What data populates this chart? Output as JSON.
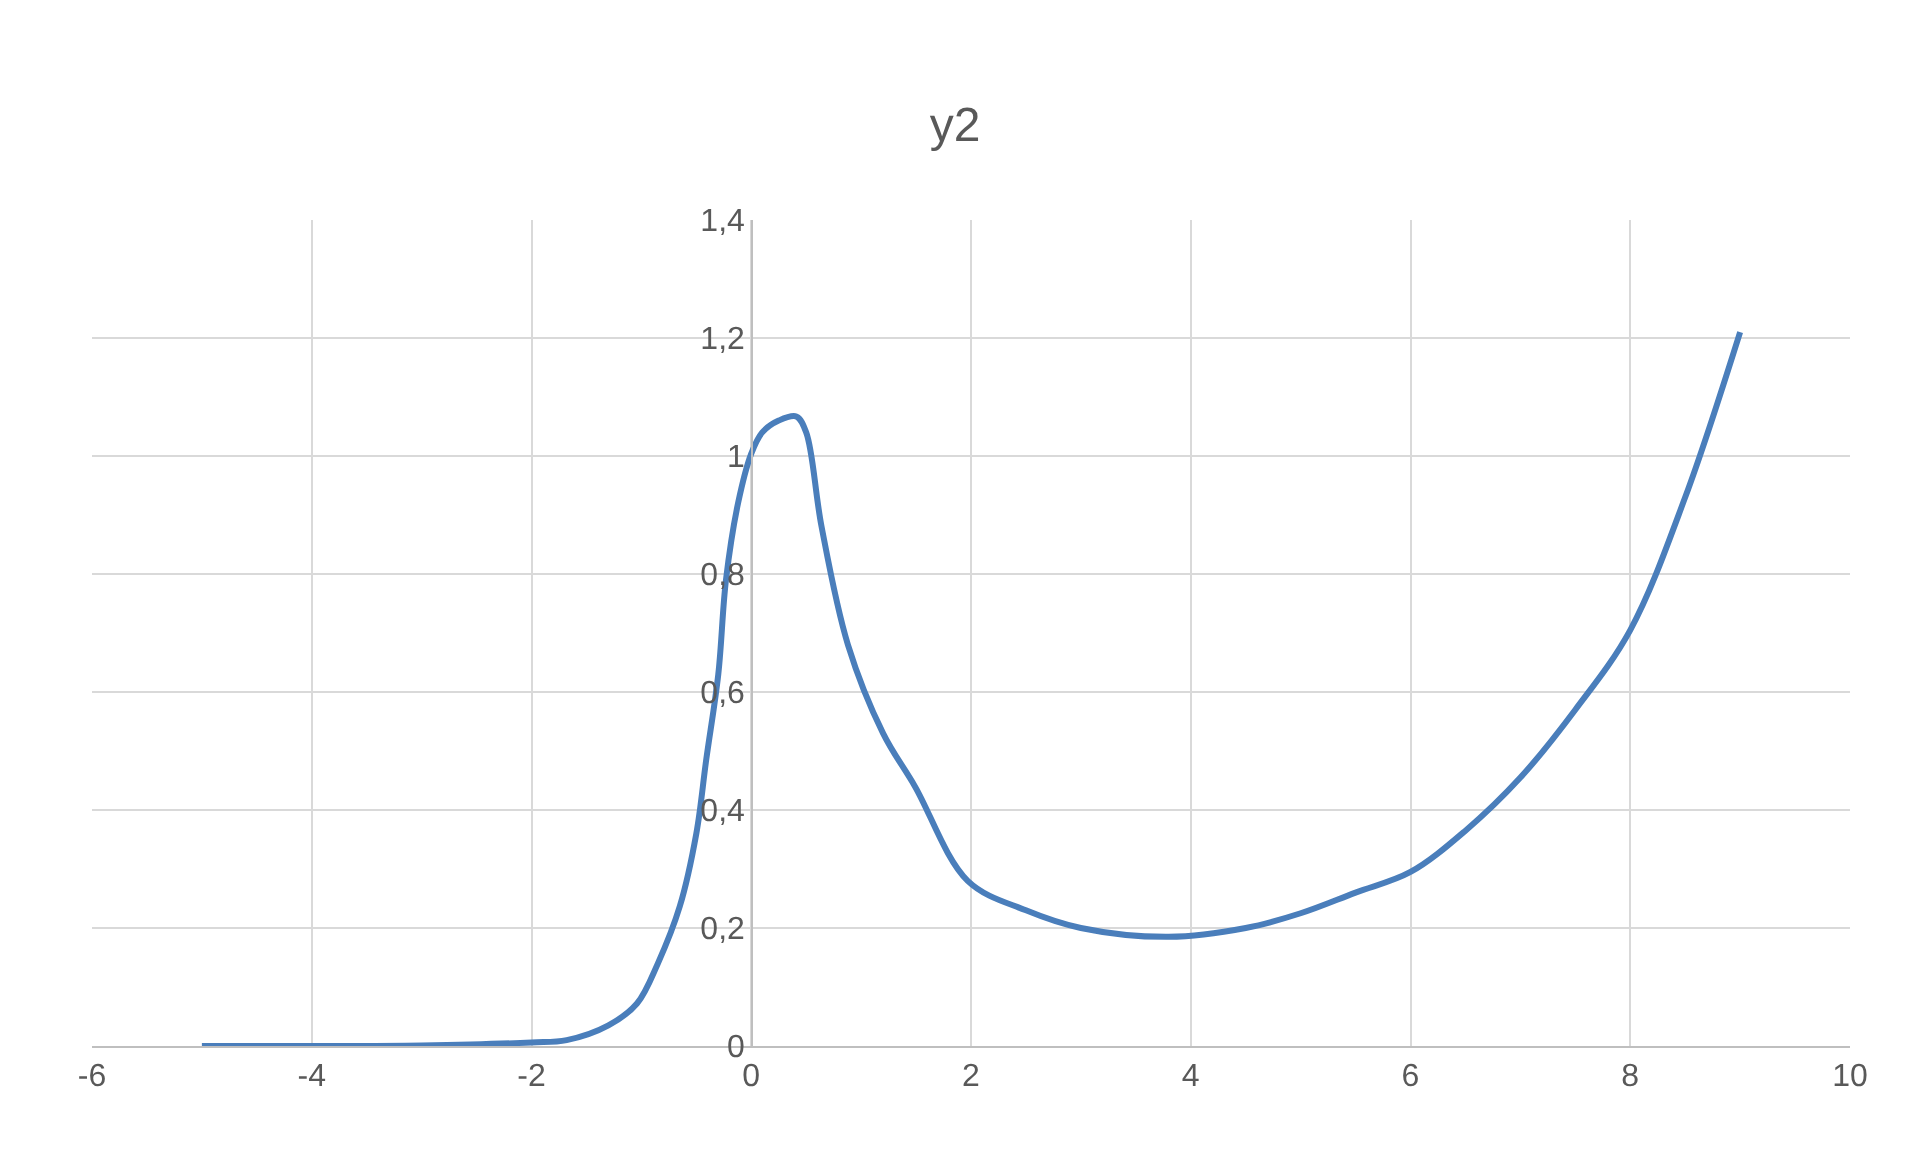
{
  "chart_data": {
    "type": "line",
    "title": "y2",
    "x": [
      -5,
      -4,
      -3,
      -2,
      -1.68,
      -1.3,
      -1.04,
      -0.85,
      -0.65,
      -0.5,
      -0.41,
      -0.3,
      -0.23,
      -0.12,
      0,
      0.1,
      0.25,
      0.41,
      0.5,
      0.64,
      0.88,
      1.2,
      1.49,
      1.97,
      2.5,
      3,
      3.8,
      4.5,
      5,
      5.5,
      6,
      6.5,
      7,
      7.5,
      8,
      8.5,
      9
    ],
    "series": [
      {
        "color": "#4a7ebb",
        "values": [
          0,
          0,
          0.001,
          0.006,
          0.01,
          0.035,
          0.072,
          0.14,
          0.237,
          0.36,
          0.485,
          0.63,
          0.79,
          0.92,
          1.004,
          1.04,
          1.06,
          1.067,
          1.04,
          0.88,
          0.68,
          0.53,
          0.44,
          0.28,
          0.23,
          0.2,
          0.185,
          0.2,
          0.225,
          0.26,
          0.295,
          0.365,
          0.455,
          0.57,
          0.705,
          0.93,
          1.21
        ]
      }
    ],
    "xlim": [
      -6,
      10
    ],
    "xticks": [
      -6,
      -4,
      -2,
      0,
      2,
      4,
      6,
      8,
      10
    ],
    "ylim": [
      0,
      1.4
    ],
    "yticks": [
      0,
      {
        "value": 0.2,
        "label": "0,2"
      },
      {
        "value": 0.4,
        "label": "0,4"
      },
      {
        "value": 0.6,
        "label": "0,6"
      },
      {
        "value": 0.8,
        "label": "0,8"
      },
      1,
      {
        "value": 1.2,
        "label": "1,2"
      },
      {
        "value": 1.4,
        "label": "1,4"
      }
    ],
    "grid": true,
    "marker": "none",
    "line_style": "solid"
  }
}
